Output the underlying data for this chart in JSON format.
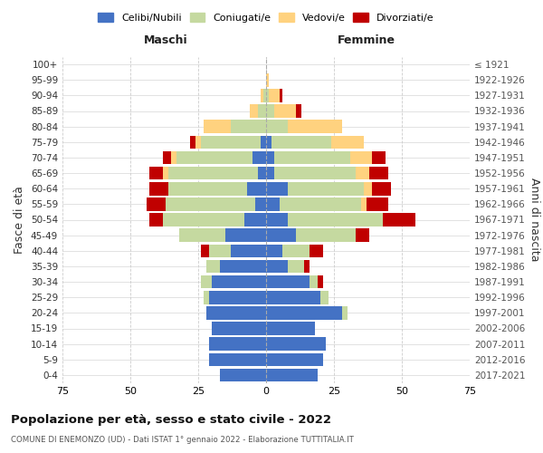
{
  "age_groups": [
    "0-4",
    "5-9",
    "10-14",
    "15-19",
    "20-24",
    "25-29",
    "30-34",
    "35-39",
    "40-44",
    "45-49",
    "50-54",
    "55-59",
    "60-64",
    "65-69",
    "70-74",
    "75-79",
    "80-84",
    "85-89",
    "90-94",
    "95-99",
    "100+"
  ],
  "birth_years": [
    "2017-2021",
    "2012-2016",
    "2007-2011",
    "2002-2006",
    "1997-2001",
    "1992-1996",
    "1987-1991",
    "1982-1986",
    "1977-1981",
    "1972-1976",
    "1967-1971",
    "1962-1966",
    "1957-1961",
    "1952-1956",
    "1947-1951",
    "1942-1946",
    "1937-1941",
    "1932-1936",
    "1927-1931",
    "1922-1926",
    "≤ 1921"
  ],
  "male": {
    "celibi": [
      17,
      21,
      21,
      20,
      22,
      21,
      20,
      17,
      13,
      15,
      8,
      4,
      7,
      3,
      5,
      2,
      0,
      0,
      0,
      0,
      0
    ],
    "coniugati": [
      0,
      0,
      0,
      0,
      0,
      2,
      4,
      5,
      8,
      17,
      30,
      33,
      29,
      33,
      28,
      22,
      13,
      3,
      1,
      0,
      0
    ],
    "vedovi": [
      0,
      0,
      0,
      0,
      0,
      0,
      0,
      0,
      0,
      0,
      0,
      0,
      0,
      2,
      2,
      2,
      10,
      3,
      1,
      0,
      0
    ],
    "divorziati": [
      0,
      0,
      0,
      0,
      0,
      0,
      0,
      0,
      3,
      0,
      5,
      7,
      7,
      5,
      3,
      2,
      0,
      0,
      0,
      0,
      0
    ]
  },
  "female": {
    "nubili": [
      19,
      21,
      22,
      18,
      28,
      20,
      16,
      8,
      6,
      11,
      8,
      5,
      8,
      3,
      3,
      2,
      0,
      0,
      0,
      0,
      0
    ],
    "coniugate": [
      0,
      0,
      0,
      0,
      2,
      3,
      3,
      6,
      10,
      22,
      35,
      30,
      28,
      30,
      28,
      22,
      8,
      3,
      1,
      0,
      0
    ],
    "vedove": [
      0,
      0,
      0,
      0,
      0,
      0,
      0,
      0,
      0,
      0,
      0,
      2,
      3,
      5,
      8,
      12,
      20,
      8,
      4,
      1,
      0
    ],
    "divorziate": [
      0,
      0,
      0,
      0,
      0,
      0,
      2,
      2,
      5,
      5,
      12,
      8,
      7,
      7,
      5,
      0,
      0,
      2,
      1,
      0,
      0
    ]
  },
  "colors": {
    "celibi": "#4472C4",
    "coniugati": "#C5D9A0",
    "vedovi": "#FFD27F",
    "divorziati": "#C00000"
  },
  "xlim": 75,
  "title": "Popolazione per età, sesso e stato civile - 2022",
  "subtitle": "COMUNE DI ENEMONZO (UD) - Dati ISTAT 1° gennaio 2022 - Elaborazione TUTTITALIA.IT",
  "xlabel_left": "Maschi",
  "xlabel_right": "Femmine",
  "ylabel_left": "Fasce di età",
  "ylabel_right": "Anni di nascita",
  "legend_labels": [
    "Celibi/Nubili",
    "Coniugati/e",
    "Vedovi/e",
    "Divorziati/e"
  ],
  "background_color": "#ffffff",
  "grid_color": "#cccccc"
}
